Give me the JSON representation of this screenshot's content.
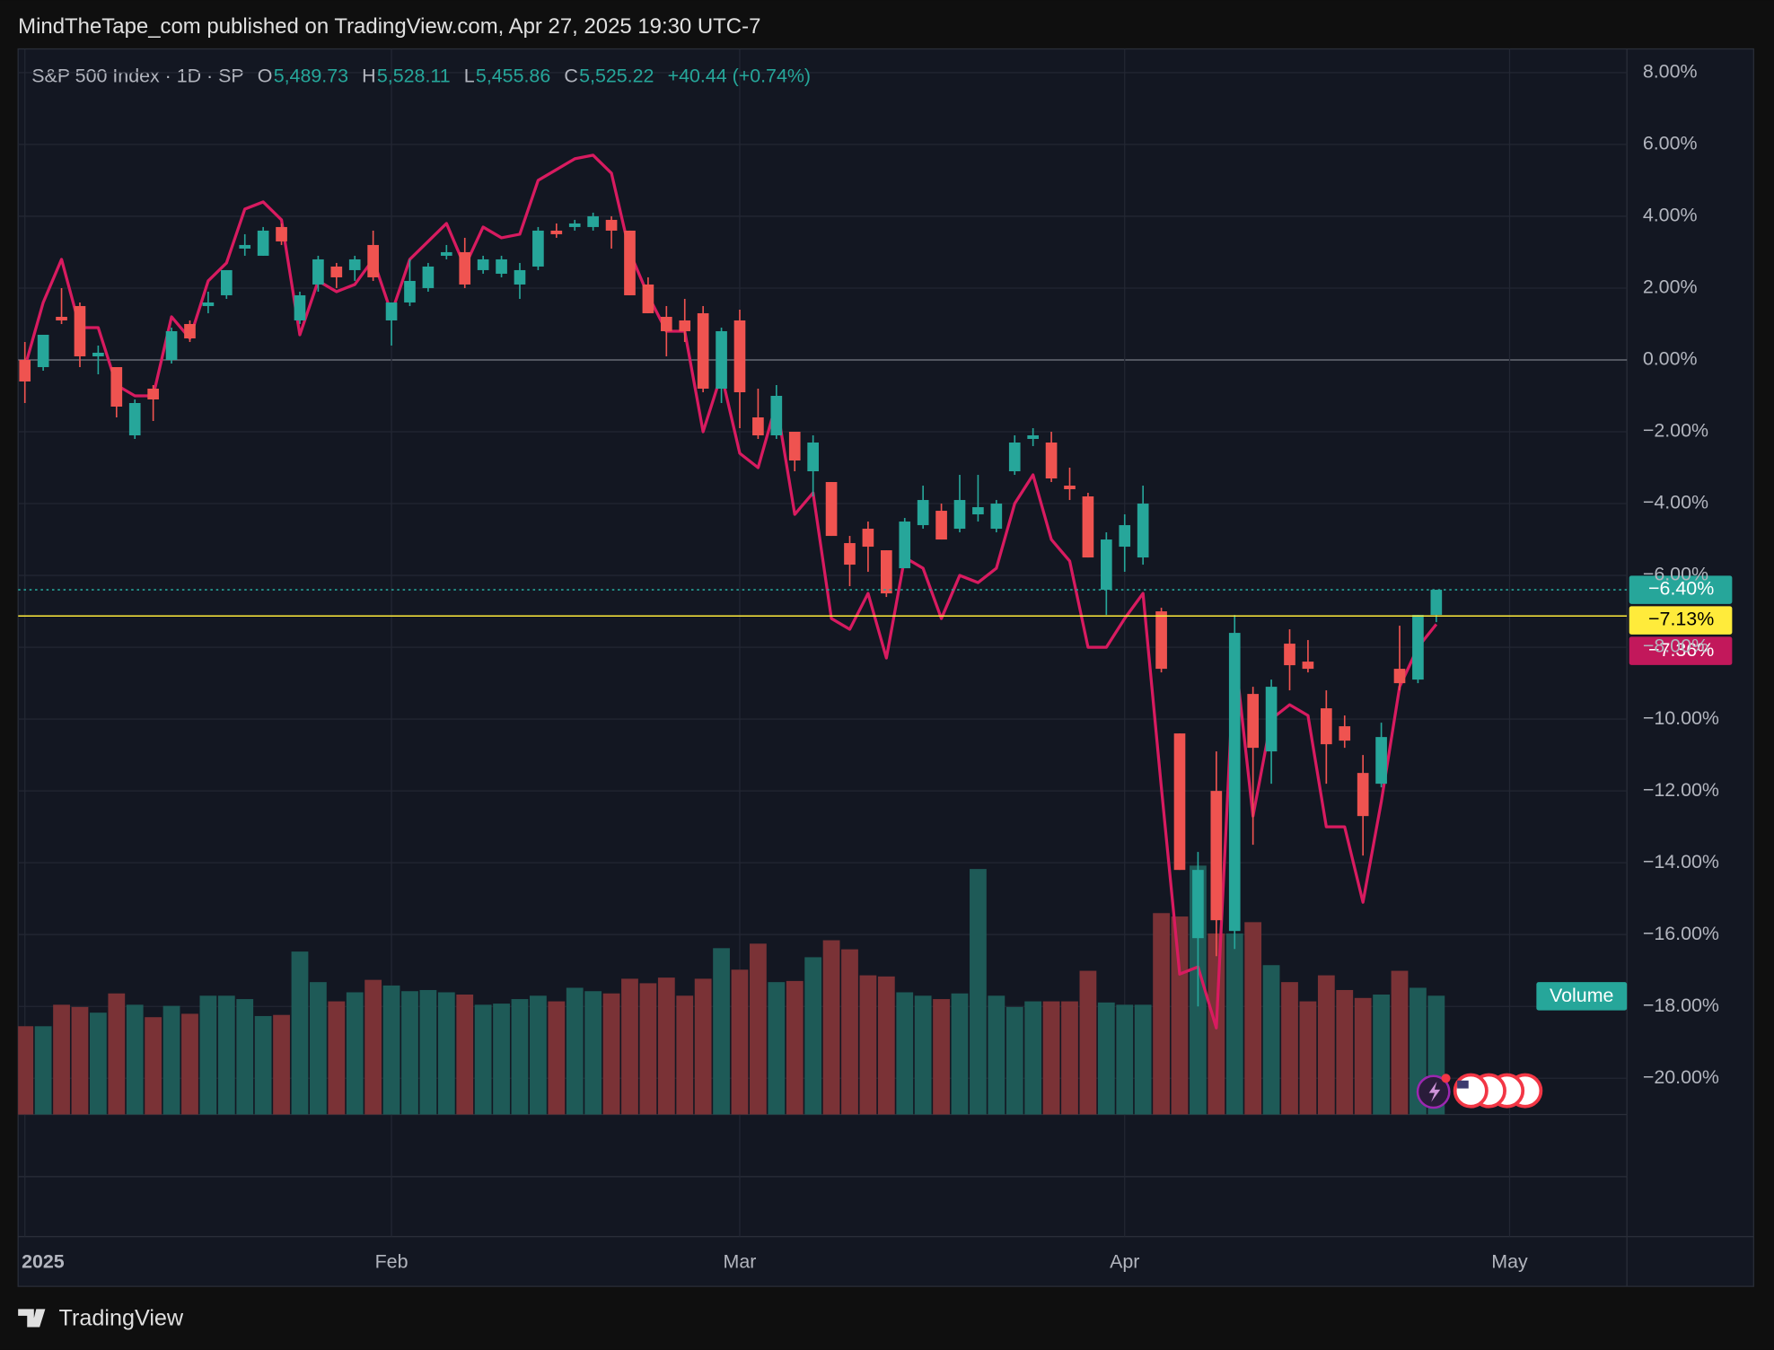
{
  "header": {
    "publisher": "MindTheTape_com published on TradingView.com, Apr 27, 2025 19:30 UTC-7"
  },
  "footer": {
    "brand": "TradingView"
  },
  "chart_data": {
    "type": "candlestick",
    "title": "S&P 500 Index · 1D · SP",
    "ohlc_legend": [
      {
        "key": "O",
        "value": "5,489.73"
      },
      {
        "key": "H",
        "value": "5,528.11"
      },
      {
        "key": "L",
        "value": "5,455.86"
      },
      {
        "key": "C",
        "value": "5,525.22"
      }
    ],
    "change": "+40.44 (+0.74%)",
    "up_color": "#26a69a",
    "down_color": "#ef5350",
    "xlim": [
      -0.37,
      87.4
    ],
    "xticks": [
      {
        "value": 0,
        "label": "2025"
      },
      {
        "value": 20,
        "label": "Feb"
      },
      {
        "value": 39,
        "label": "Mar"
      },
      {
        "value": 60,
        "label": "Apr"
      },
      {
        "value": 81,
        "label": "May"
      }
    ],
    "ylim": [
      -24.41,
      8.66
    ],
    "yticks": [
      {
        "value": 8,
        "label": "8.00%"
      },
      {
        "value": 6,
        "label": "6.00%"
      },
      {
        "value": 4,
        "label": "4.00%"
      },
      {
        "value": 2,
        "label": "2.00%"
      },
      {
        "value": 0,
        "label": "0.00%"
      },
      {
        "value": -2,
        "label": "−2.00%"
      },
      {
        "value": -4,
        "label": "−4.00%"
      },
      {
        "value": -6,
        "label": "−6.00%"
      },
      {
        "value": -8,
        "label": "−8.00%"
      },
      {
        "value": -10,
        "label": "−10.00%"
      },
      {
        "value": -12,
        "label": "−12.00%"
      },
      {
        "value": -14,
        "label": "−14.00%"
      },
      {
        "value": -16,
        "label": "−16.00%"
      },
      {
        "value": -18,
        "label": "−18.00%"
      },
      {
        "value": -20,
        "label": "−20.00%"
      }
    ],
    "grid": true,
    "candles": {
      "open": [
        0,
        -0.2,
        1.2,
        1.5,
        0.1,
        -0.2,
        -2.1,
        -0.8,
        0,
        1.0,
        1.5,
        1.8,
        3.1,
        2.9,
        3.7,
        1.1,
        2.1,
        2.6,
        2.5,
        3.2,
        1.1,
        1.6,
        2.0,
        2.9,
        3.0,
        2.5,
        2.4,
        2.1,
        2.6,
        3.6,
        3.7,
        3.7,
        3.9,
        3.6,
        2.1,
        1.2,
        1.1,
        1.3,
        -0.8,
        1.1,
        -1.6,
        -2.1,
        -2.0,
        -3.1,
        -3.4,
        -5.1,
        -4.7,
        -5.3,
        -5.8,
        -4.6,
        -4.2,
        -4.7,
        -4.3,
        -4.7,
        -3.1,
        -2.2,
        -2.3,
        -3.5,
        -3.8,
        -6.4,
        -5.2,
        -5.5,
        -7.0,
        -10.4,
        -16.1,
        -12.0,
        -15.9,
        -9.3,
        -10.9,
        -7.9,
        -8.4,
        -9.7,
        -10.2,
        -11.5,
        -11.8,
        -8.6,
        -8.9,
        -7.1
      ],
      "high": [
        0.5,
        0.7,
        2.0,
        1.6,
        0.4,
        -0.2,
        -1.1,
        -0.7,
        0.9,
        1.1,
        1.9,
        2.5,
        3.5,
        3.7,
        3.8,
        1.9,
        2.9,
        2.7,
        2.9,
        3.6,
        1.6,
        2.8,
        2.7,
        3.2,
        3.4,
        2.9,
        2.9,
        2.7,
        3.7,
        3.8,
        3.9,
        4.1,
        4.0,
        3.6,
        2.3,
        1.5,
        1.7,
        1.5,
        0.9,
        1.4,
        -0.8,
        -0.7,
        -2.0,
        -2.1,
        -3.4,
        -4.9,
        -4.5,
        -5.3,
        -4.4,
        -3.5,
        -4.0,
        -3.2,
        -3.2,
        -3.9,
        -2.1,
        -1.9,
        -2.0,
        -3.0,
        -3.7,
        -4.8,
        -4.3,
        -3.5,
        -6.9,
        -10.4,
        -13.7,
        -10.9,
        -7.1,
        -9.1,
        -8.9,
        -7.5,
        -7.8,
        -9.2,
        -9.9,
        -11.0,
        -10.1,
        -7.4,
        -7.1,
        -6.4
      ],
      "low": [
        -1.2,
        -0.3,
        1.0,
        -0.2,
        -0.4,
        -1.6,
        -2.2,
        -1.7,
        -0.1,
        0.5,
        1.3,
        1.7,
        2.9,
        2.9,
        3.2,
        1.0,
        1.9,
        2.0,
        2.2,
        2.2,
        0.4,
        1.5,
        1.9,
        2.8,
        2.0,
        2.4,
        2.3,
        1.7,
        2.5,
        3.4,
        3.6,
        3.6,
        3.1,
        1.8,
        1.3,
        0.1,
        0.5,
        -0.9,
        -1.2,
        -1.9,
        -2.2,
        -2.2,
        -3.1,
        -3.8,
        -4.9,
        -6.3,
        -5.9,
        -6.6,
        -5.8,
        -4.7,
        -5.0,
        -4.8,
        -4.5,
        -4.8,
        -3.2,
        -2.4,
        -3.4,
        -3.9,
        -5.5,
        -7.1,
        -5.9,
        -5.7,
        -8.7,
        -14.2,
        -18.0,
        -16.6,
        -16.4,
        -13.5,
        -11.8,
        -9.2,
        -8.7,
        -11.8,
        -10.8,
        -13.8,
        -11.9,
        -9.2,
        -9.0,
        -7.3
      ],
      "close": [
        -0.6,
        0.7,
        1.1,
        0.1,
        0.2,
        -1.3,
        -1.2,
        -1.1,
        0.8,
        0.6,
        1.6,
        2.5,
        3.2,
        3.6,
        3.3,
        1.8,
        2.8,
        2.3,
        2.8,
        2.3,
        1.6,
        2.2,
        2.6,
        3.0,
        2.1,
        2.8,
        2.8,
        2.5,
        3.6,
        3.5,
        3.8,
        4.0,
        3.6,
        1.8,
        1.3,
        0.8,
        0.8,
        -0.8,
        0.8,
        -0.9,
        -2.1,
        -1.0,
        -2.8,
        -2.3,
        -4.9,
        -5.7,
        -5.2,
        -6.5,
        -4.5,
        -3.9,
        -5.0,
        -3.9,
        -4.1,
        -4.0,
        -2.3,
        -2.1,
        -3.3,
        -3.6,
        -5.5,
        -5.0,
        -4.6,
        -4.0,
        -8.6,
        -14.2,
        -14.2,
        -15.6,
        -7.6,
        -10.8,
        -9.1,
        -8.5,
        -8.6,
        -10.7,
        -10.6,
        -12.7,
        -10.5,
        -9.0,
        -7.1,
        -6.4
      ]
    },
    "comparison": {
      "color": "#d81b60",
      "values": [
        -0.2,
        1.6,
        2.8,
        0.9,
        0.9,
        -0.7,
        -1.0,
        -1.0,
        1.2,
        0.6,
        2.2,
        2.7,
        4.2,
        4.4,
        3.9,
        0.7,
        2.2,
        1.9,
        2.1,
        2.8,
        1.3,
        2.8,
        3.3,
        3.8,
        2.6,
        3.7,
        3.4,
        3.5,
        5.0,
        5.3,
        5.6,
        5.7,
        5.2,
        3.0,
        1.8,
        0.8,
        0.8,
        -2.0,
        -0.4,
        -2.6,
        -3.0,
        -1.2,
        -4.3,
        -3.7,
        -7.2,
        -7.5,
        -6.5,
        -8.3,
        -5.5,
        -5.8,
        -7.2,
        -6.0,
        -6.2,
        -5.8,
        -4.0,
        -3.2,
        -5.0,
        -5.6,
        -8.0,
        -8.0,
        -7.2,
        -6.5,
        -11.9,
        -17.1,
        -16.9,
        -18.6,
        -8.1,
        -12.7,
        -10.0,
        -9.6,
        -9.9,
        -13.0,
        -13.0,
        -15.1,
        -12.3,
        -9.1,
        -8.0,
        -7.36
      ]
    },
    "volume": {
      "name": "Volume",
      "ylim": [
        0,
        30
      ],
      "up_color": "#1e5a57",
      "down_color": "#7a3236",
      "values": [
        7.8,
        7.8,
        9.7,
        9.5,
        9.0,
        10.7,
        9.7,
        8.6,
        9.6,
        8.9,
        10.5,
        10.5,
        10.2,
        8.7,
        8.8,
        14.4,
        11.7,
        10.0,
        10.8,
        11.9,
        11.4,
        10.9,
        11.0,
        10.8,
        10.6,
        9.7,
        9.8,
        10.2,
        10.5,
        10.0,
        11.2,
        10.9,
        10.7,
        12.0,
        11.6,
        12.1,
        10.5,
        12.0,
        14.7,
        12.8,
        15.1,
        11.7,
        11.8,
        13.9,
        15.4,
        14.6,
        12.3,
        12.2,
        10.8,
        10.5,
        10.2,
        10.7,
        21.7,
        10.5,
        9.5,
        10.0,
        10.0,
        10.0,
        12.7,
        9.9,
        9.7,
        9.7,
        17.8,
        17.5,
        22.0,
        16.0,
        16.0,
        17.0,
        13.2,
        11.7,
        10.0,
        12.3,
        11.0,
        10.3,
        10.6,
        12.7,
        11.2,
        10.5
      ]
    },
    "price_lines": [
      {
        "value": -6.4,
        "label": "−6.40%",
        "color": "#26a69a",
        "text_color": "#ffffff",
        "style": "dotted"
      },
      {
        "value": -7.13,
        "label": "−7.13%",
        "color": "#ffeb3b",
        "text_color": "#000000",
        "style": "solid"
      },
      {
        "value": -7.36,
        "label": "−7.36%",
        "color": "#c2185b",
        "text_color": "#ffffff",
        "style": "none"
      }
    ]
  }
}
